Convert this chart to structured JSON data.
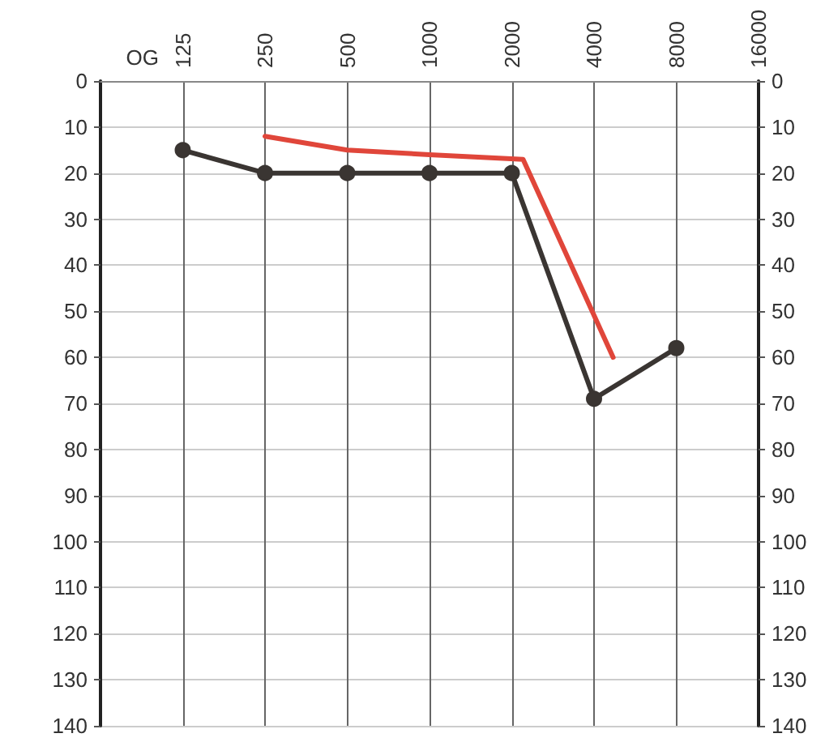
{
  "chart_data": {
    "type": "line",
    "xlabel": "OG",
    "x": [
      125,
      250,
      500,
      1000,
      2000,
      4000,
      8000
    ],
    "series": [
      {
        "color": "#3a3532",
        "values": [
          15,
          20,
          20,
          20,
          20,
          69,
          58
        ],
        "marker": "circle"
      },
      {
        "color": "#e0463a",
        "x": [
          250,
          500,
          1000,
          2200,
          4700
        ],
        "values": [
          12,
          15,
          16,
          17,
          60
        ],
        "marker": "none"
      }
    ],
    "log": "x",
    "xlim": [
      62.5,
      16000
    ],
    "xticks": [
      125,
      250,
      500,
      1000,
      2000,
      4000,
      8000,
      16000
    ],
    "ylim": [
      140,
      0
    ],
    "yticks": [
      0,
      10,
      20,
      30,
      40,
      50,
      60,
      70,
      80,
      90,
      100,
      110,
      120,
      130,
      140
    ],
    "y2lim": [
      140,
      0
    ],
    "y2ticks": [
      0,
      10,
      20,
      30,
      40,
      50,
      60,
      70,
      80,
      90,
      100,
      110,
      120,
      130,
      140
    ],
    "grid": true,
    "line_style": "solid"
  }
}
